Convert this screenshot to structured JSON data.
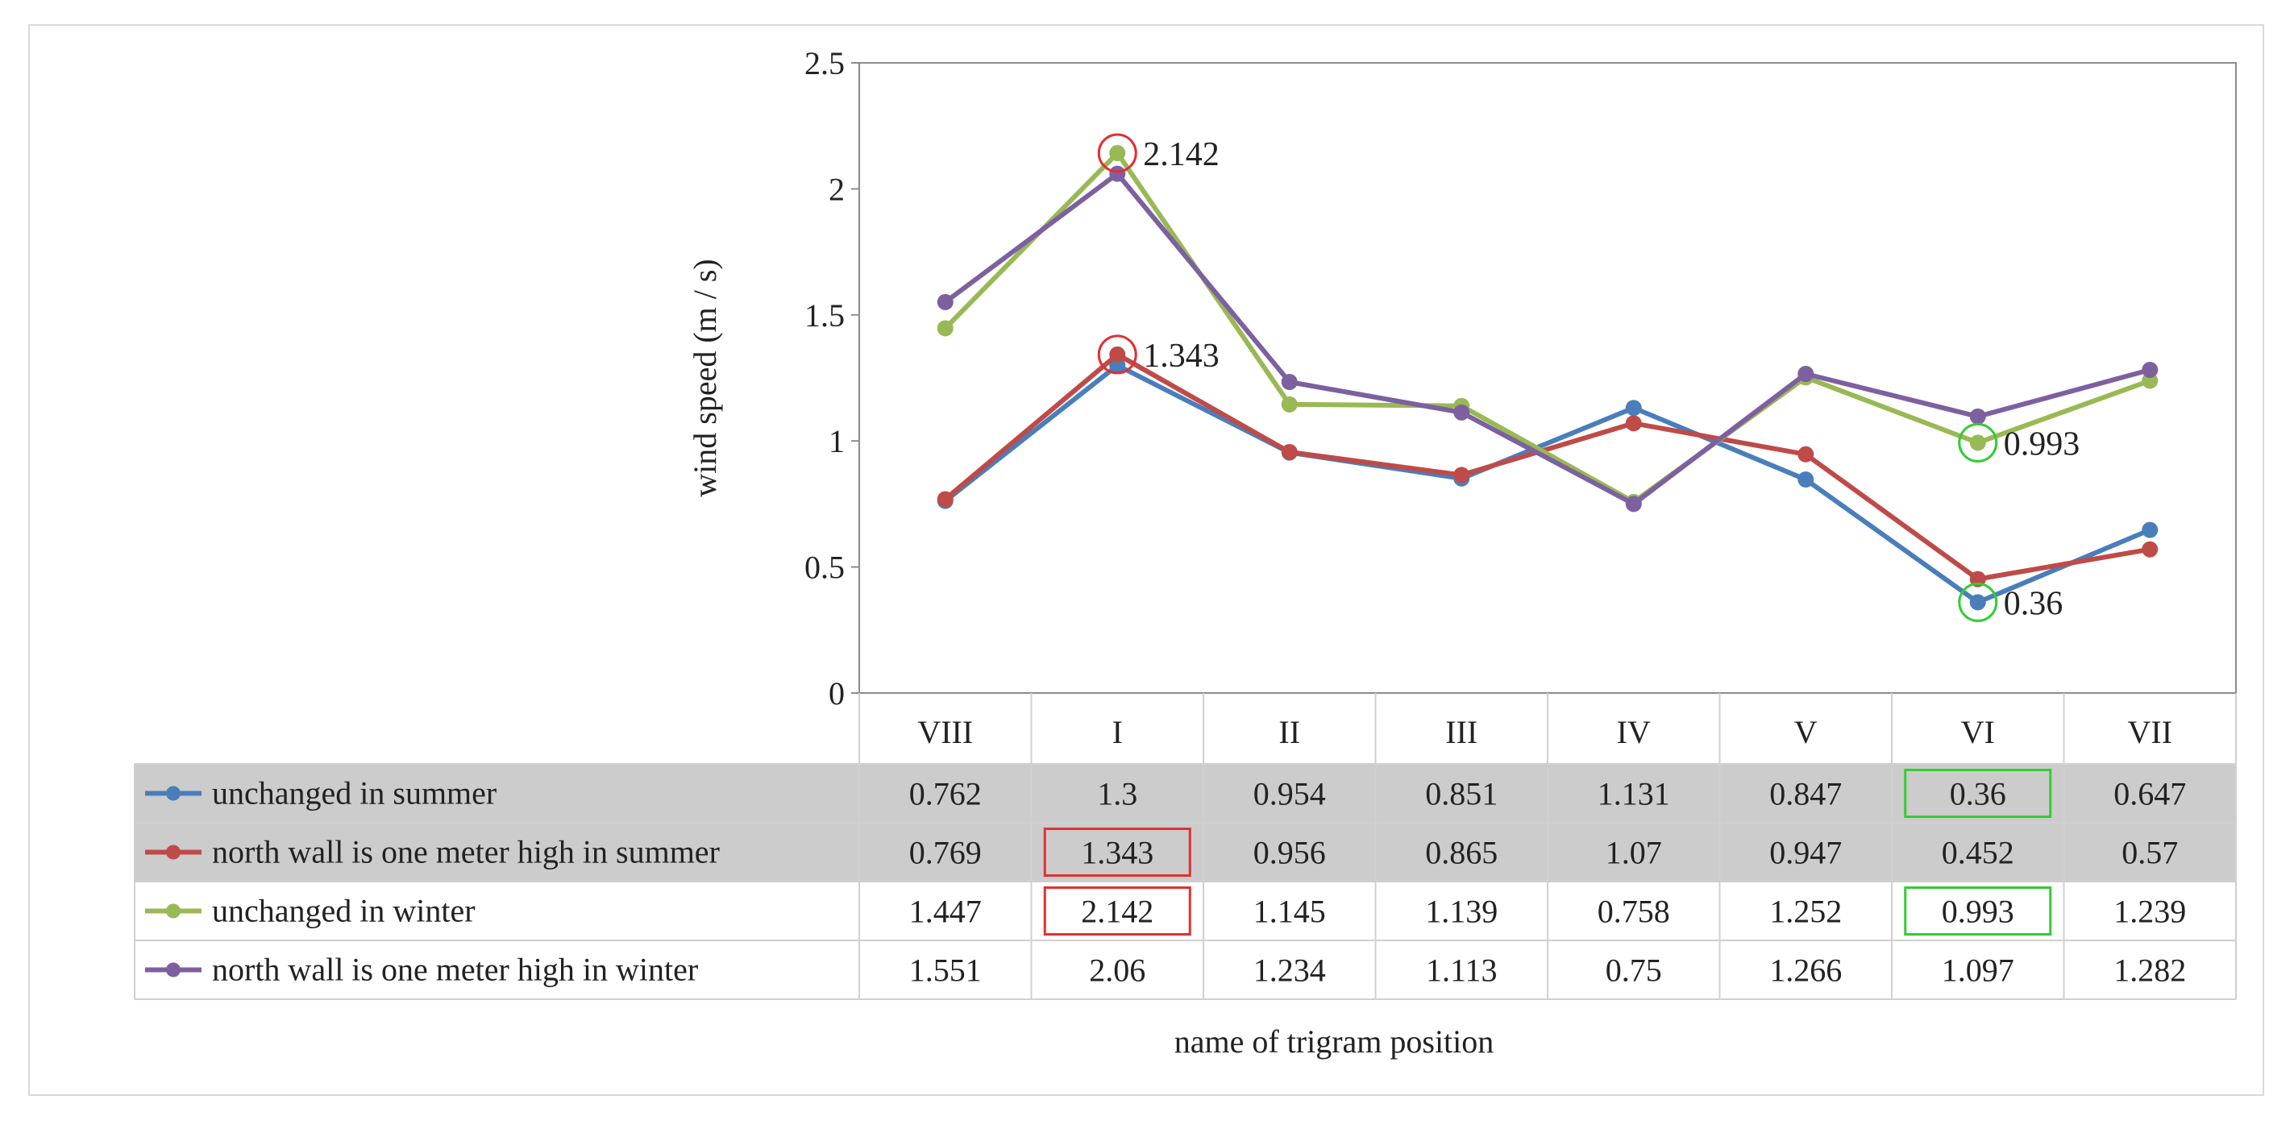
{
  "chart_data": {
    "type": "line",
    "title": "",
    "ylabel": "wind speed (m / s)",
    "xlabel": "name of trigram position",
    "ylim": [
      0,
      2.5
    ],
    "yticks": [
      "0",
      "0.5",
      "1",
      "1.5",
      "2",
      "2.5"
    ],
    "categories": [
      "VIII",
      "I",
      "II",
      "III",
      "IV",
      "V",
      "VI",
      "VII"
    ],
    "series": [
      {
        "name": "unchanged in summer",
        "color": "#4a7ebb",
        "values": [
          0.762,
          1.3,
          0.954,
          0.851,
          1.131,
          0.847,
          0.36,
          0.647
        ],
        "labels": [
          "0.762",
          "1.3",
          "0.954",
          "0.851",
          "1.131",
          "0.847",
          "0.36",
          "0.647"
        ],
        "row_shaded": true
      },
      {
        "name": "north wall is one meter high in summer",
        "color": "#be4b48",
        "values": [
          0.769,
          1.343,
          0.956,
          0.865,
          1.07,
          0.947,
          0.452,
          0.57
        ],
        "labels": [
          "0.769",
          "1.343",
          "0.956",
          "0.865",
          "1.07",
          "0.947",
          "0.452",
          "0.57"
        ],
        "row_shaded": true
      },
      {
        "name": "unchanged in winter",
        "color": "#98b954",
        "values": [
          1.447,
          2.142,
          1.145,
          1.139,
          0.758,
          1.252,
          0.993,
          1.239
        ],
        "labels": [
          "1.447",
          "2.142",
          "1.145",
          "1.139",
          "0.758",
          "1.252",
          "0.993",
          "1.239"
        ],
        "row_shaded": false
      },
      {
        "name": "north wall is one meter high in winter",
        "color": "#7d60a0",
        "values": [
          1.551,
          2.06,
          1.234,
          1.113,
          0.75,
          1.266,
          1.097,
          1.282
        ],
        "labels": [
          "1.551",
          "2.06",
          "1.234",
          "1.113",
          "0.75",
          "1.266",
          "1.097",
          "1.282"
        ],
        "row_shaded": false
      }
    ],
    "annotations": [
      {
        "text": "2.142",
        "series": 2,
        "index": 1,
        "color": "#e03030"
      },
      {
        "text": "1.343",
        "series": 1,
        "index": 1,
        "color": "#e03030"
      },
      {
        "text": "0.993",
        "series": 2,
        "index": 6,
        "color": "#33cc33"
      },
      {
        "text": "0.36",
        "series": 0,
        "index": 6,
        "color": "#33cc33"
      }
    ],
    "highlighted_cells": [
      {
        "series": 0,
        "index": 6,
        "color": "#33cc33"
      },
      {
        "series": 1,
        "index": 1,
        "color": "#e03030"
      },
      {
        "series": 2,
        "index": 1,
        "color": "#e03030"
      },
      {
        "series": 2,
        "index": 6,
        "color": "#33cc33"
      }
    ],
    "shade_color": "#cccccc"
  }
}
